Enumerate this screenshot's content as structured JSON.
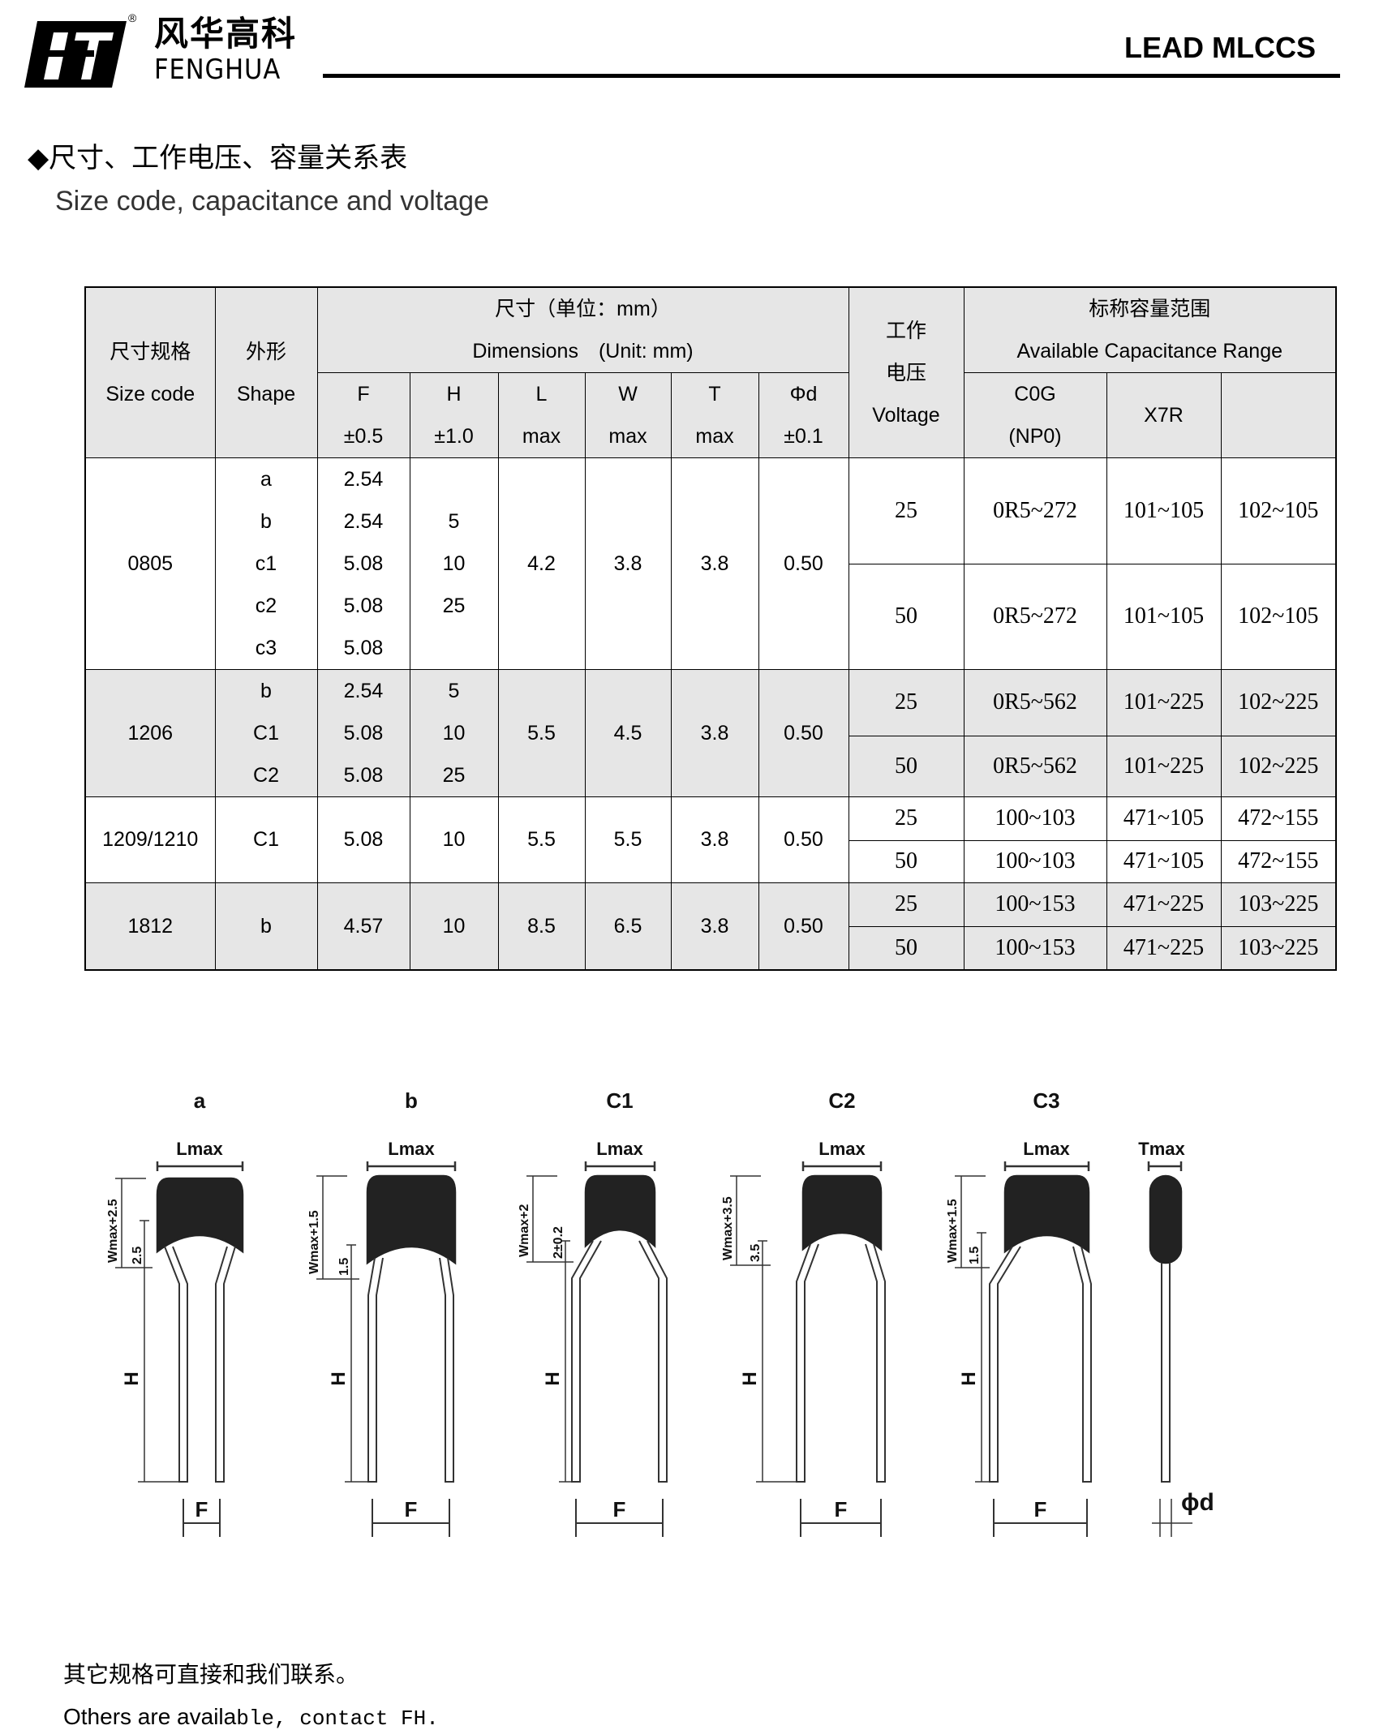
{
  "header": {
    "brand_cn": "风华高科",
    "brand_en": "FENGHUA",
    "registered_mark": "®",
    "doc_title": "LEAD MLCCS"
  },
  "section": {
    "title_cn": "◆尺寸、工作电压、容量关系表",
    "title_en": "Size code, capacitance and voltage"
  },
  "table": {
    "headers": {
      "size_cn": "尺寸规格",
      "size_en": "Size code",
      "shape_cn": "外形",
      "shape_en": "Shape",
      "dim_cn": "尺寸（单位：mm）",
      "dim_en": "Dimensions　(Unit: mm)",
      "volt_cn1": "工作",
      "volt_cn2": "电压",
      "volt_en": "Voltage",
      "cap_cn": "标称容量范围",
      "cap_en": "Available Capacitance Range",
      "dims": [
        {
          "name": "F",
          "tol": "±0.5"
        },
        {
          "name": "H",
          "tol": "±1.0"
        },
        {
          "name": "L",
          "tol": "max"
        },
        {
          "name": "W",
          "tol": "max"
        },
        {
          "name": "T",
          "tol": "max"
        },
        {
          "name": "Φd",
          "tol": "±0.1"
        }
      ],
      "cap_cols": [
        {
          "line1": "C0G",
          "line2": "(NP0)"
        },
        {
          "line1": "X7R",
          "line2": ""
        },
        {
          "line1": "",
          "line2": ""
        }
      ]
    },
    "rows": [
      {
        "size": "0805",
        "shapes": [
          "a",
          "b",
          "c1",
          "c2",
          "c3"
        ],
        "F": [
          "2.54",
          "2.54",
          "5.08",
          "5.08",
          "5.08"
        ],
        "H": [
          "",
          "5",
          "10",
          "25",
          ""
        ],
        "L": "4.2",
        "W": "3.8",
        "T": "3.8",
        "d": "0.50",
        "voltages": [
          {
            "v": "25",
            "c0g": "0R5~272",
            "x7r": "101~105",
            "other": "102~105"
          },
          {
            "v": "50",
            "c0g": "0R5~272",
            "x7r": "101~105",
            "other": "102~105"
          }
        ]
      },
      {
        "size": "1206",
        "shapes": [
          "b",
          "C1",
          "C2"
        ],
        "F": [
          "2.54",
          "5.08",
          "5.08"
        ],
        "H": [
          "5",
          "10",
          "25"
        ],
        "L": "5.5",
        "W": "4.5",
        "T": "3.8",
        "d": "0.50",
        "voltages": [
          {
            "v": "25",
            "c0g": "0R5~562",
            "x7r": "101~225",
            "other": "102~225"
          },
          {
            "v": "50",
            "c0g": "0R5~562",
            "x7r": "101~225",
            "other": "102~225"
          }
        ]
      },
      {
        "size": "1209/1210",
        "shapes": [
          "C1"
        ],
        "F": [
          "5.08"
        ],
        "H": [
          "10"
        ],
        "L": "5.5",
        "W": "5.5",
        "T": "3.8",
        "d": "0.50",
        "voltages": [
          {
            "v": "25",
            "c0g": "100~103",
            "x7r": "471~105",
            "other": "472~155"
          },
          {
            "v": "50",
            "c0g": "100~103",
            "x7r": "471~105",
            "other": "472~155"
          }
        ]
      },
      {
        "size": "1812",
        "shapes": [
          "b"
        ],
        "F": [
          "4.57"
        ],
        "H": [
          "10"
        ],
        "L": "8.5",
        "W": "6.5",
        "T": "3.8",
        "d": "0.50",
        "voltages": [
          {
            "v": "25",
            "c0g": "100~153",
            "x7r": "471~225",
            "other": "103~225"
          },
          {
            "v": "50",
            "c0g": "100~153",
            "x7r": "471~225",
            "other": "103~225"
          }
        ]
      }
    ]
  },
  "diagram": {
    "shapes": [
      {
        "label": "a",
        "w_dim": "Wmax+2.5",
        "sub_dim": "2.5"
      },
      {
        "label": "b",
        "w_dim": "Wmax+1.5",
        "sub_dim": "1.5"
      },
      {
        "label": "C1",
        "w_dim": "Wmax+2",
        "sub_dim": "2±0.2"
      },
      {
        "label": "C2",
        "w_dim": "Wmax+3.5",
        "sub_dim": "3.5"
      },
      {
        "label": "C3",
        "w_dim": "Wmax+1.5",
        "sub_dim": "1.5"
      }
    ],
    "lmax": "Lmax",
    "tmax": "Tmax",
    "h": "H",
    "f": "F",
    "phid": "ϕd"
  },
  "footer": {
    "note_cn": "其它规格可直接和我们联系。",
    "note_en_a": "Others are availa",
    "note_en_b": "ble, contact FH."
  },
  "colors": {
    "header_fill": "#e6e6e6",
    "body": "#222222"
  }
}
